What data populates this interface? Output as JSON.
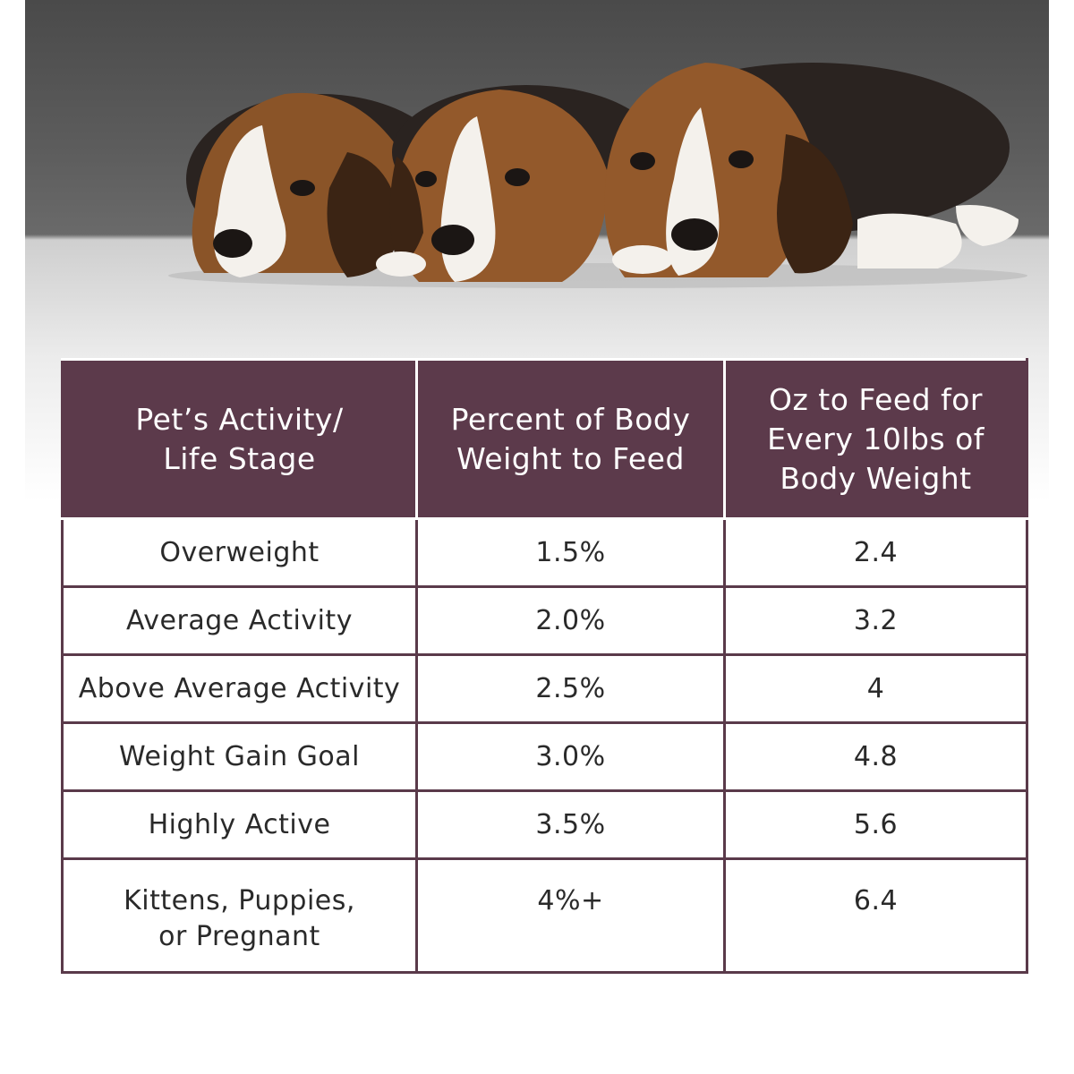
{
  "image": {
    "subject": "three beagle puppies",
    "colors": {
      "backdrop": "#555555",
      "floor": "#e4e4e4",
      "header": "#5c3a4b",
      "border": "#5a3a4a"
    }
  },
  "table": {
    "headers": [
      {
        "line1": "Pet’s Activity/",
        "line2": "Life Stage"
      },
      {
        "line1": "Percent of Body",
        "line2": "Weight to Feed"
      },
      {
        "line1": "Oz to Feed for",
        "line2": "Every 10lbs of",
        "line3": "Body Weight"
      }
    ],
    "rows": [
      {
        "stage": "Overweight",
        "percent": "1.5%",
        "oz": "2.4"
      },
      {
        "stage": "Average Activity",
        "percent": "2.0%",
        "oz": "3.2"
      },
      {
        "stage": "Above Average Activity",
        "percent": "2.5%",
        "oz": "4"
      },
      {
        "stage": "Weight Gain Goal",
        "percent": "3.0%",
        "oz": "4.8"
      },
      {
        "stage": "Highly Active",
        "percent": "3.5%",
        "oz": "5.6"
      },
      {
        "stage_line1": "Kittens, Puppies,",
        "stage_line2": "or Pregnant",
        "percent": "4%+",
        "oz": "6.4"
      }
    ]
  }
}
